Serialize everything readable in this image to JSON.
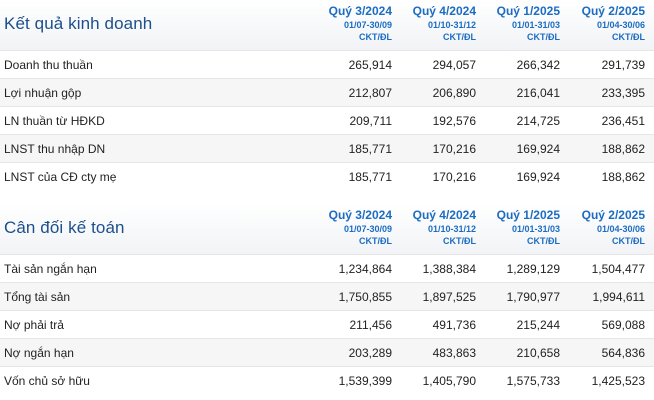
{
  "columns": [
    {
      "quarter": "Quý 3/2024",
      "range": "01/07-30/09",
      "unit": "CKT/ĐL"
    },
    {
      "quarter": "Quý 4/2024",
      "range": "01/10-31/12",
      "unit": "CKT/ĐL"
    },
    {
      "quarter": "Quý 1/2025",
      "range": "01/01-31/03",
      "unit": "CKT/ĐL"
    },
    {
      "quarter": "Quý 2/2025",
      "range": "01/04-30/06",
      "unit": "CKT/ĐL"
    }
  ],
  "income": {
    "title": "Kết quả kinh doanh",
    "rows": [
      {
        "label": "Doanh thu thuần",
        "values": [
          "265,914",
          "294,057",
          "266,342",
          "291,739"
        ]
      },
      {
        "label": "Lợi nhuận gộp",
        "values": [
          "212,807",
          "206,890",
          "216,041",
          "233,395"
        ]
      },
      {
        "label": "LN thuần từ HĐKD",
        "values": [
          "209,711",
          "192,576",
          "214,725",
          "236,451"
        ]
      },
      {
        "label": "LNST thu nhập DN",
        "values": [
          "185,771",
          "170,216",
          "169,924",
          "188,862"
        ]
      },
      {
        "label": "LNST của CĐ cty mẹ",
        "values": [
          "185,771",
          "170,216",
          "169,924",
          "188,862"
        ]
      }
    ]
  },
  "balance": {
    "title": "Cân đối kế toán",
    "rows": [
      {
        "label": "Tài sản ngắn hạn",
        "values": [
          "1,234,864",
          "1,388,384",
          "1,289,129",
          "1,504,477"
        ]
      },
      {
        "label": "Tổng tài sản",
        "values": [
          "1,750,855",
          "1,897,525",
          "1,790,977",
          "1,994,611"
        ]
      },
      {
        "label": "Nợ phải trả",
        "values": [
          "211,456",
          "491,736",
          "215,244",
          "569,088"
        ]
      },
      {
        "label": "Nợ ngắn hạn",
        "values": [
          "203,289",
          "483,863",
          "210,658",
          "564,836"
        ]
      },
      {
        "label": "Vốn chủ sở hữu",
        "values": [
          "1,539,399",
          "1,405,790",
          "1,575,733",
          "1,425,523"
        ]
      }
    ]
  }
}
